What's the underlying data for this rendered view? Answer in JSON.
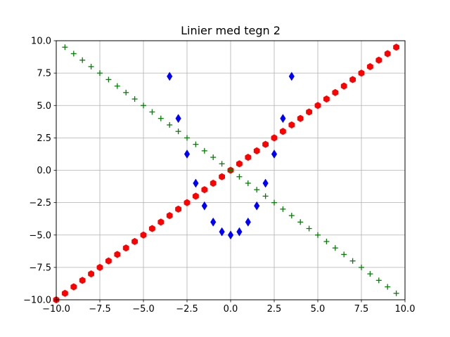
{
  "chart_data": {
    "type": "scatter",
    "title": "Linier med tegn 2",
    "xlabel": "",
    "ylabel": "",
    "xlim": [
      -10,
      10
    ],
    "ylim": [
      -10,
      10
    ],
    "grid": true,
    "x_ticks": [
      -10,
      -7.5,
      -5,
      -2.5,
      0,
      2.5,
      5,
      7.5,
      10
    ],
    "y_ticks": [
      -10,
      -7.5,
      -5,
      -2.5,
      0,
      2.5,
      5,
      7.5,
      10
    ],
    "x_tick_labels": [
      "−10.0",
      "−7.5",
      "−5.0",
      "−2.5",
      "0.0",
      "2.5",
      "5.0",
      "7.5",
      "10.0"
    ],
    "y_tick_labels": [
      "−10.0",
      "−7.5",
      "−5.0",
      "−2.5",
      "0.0",
      "2.5",
      "5.0",
      "7.5",
      "10.0"
    ],
    "series": [
      {
        "marker": "hexagon",
        "color": "#ff0000",
        "x": [
          -10,
          -9.5,
          -9,
          -8.5,
          -8,
          -7.5,
          -7,
          -6.5,
          -6,
          -5.5,
          -5,
          -4.5,
          -4,
          -3.5,
          -3,
          -2.5,
          -2,
          -1.5,
          -1,
          -0.5,
          0,
          0.5,
          1,
          1.5,
          2,
          2.5,
          3,
          3.5,
          4,
          4.5,
          5,
          5.5,
          6,
          6.5,
          7,
          7.5,
          8,
          8.5,
          9,
          9.5
        ],
        "y": [
          -10,
          -9.5,
          -9,
          -8.5,
          -8,
          -7.5,
          -7,
          -6.5,
          -6,
          -5.5,
          -5,
          -4.5,
          -4,
          -3.5,
          -3,
          -2.5,
          -2,
          -1.5,
          -1,
          -0.5,
          0,
          0.5,
          1,
          1.5,
          2,
          2.5,
          3,
          3.5,
          4,
          4.5,
          5,
          5.5,
          6,
          6.5,
          7,
          7.5,
          8,
          8.5,
          9,
          9.5
        ]
      },
      {
        "marker": "plus",
        "color": "#008000",
        "x": [
          -9.5,
          -9,
          -8.5,
          -8,
          -7.5,
          -7,
          -6.5,
          -6,
          -5.5,
          -5,
          -4.5,
          -4,
          -3.5,
          -3,
          -2.5,
          -2,
          -1.5,
          -1,
          -0.5,
          0,
          0.5,
          1,
          1.5,
          2,
          2.5,
          3,
          3.5,
          4,
          4.5,
          5,
          5.5,
          6,
          6.5,
          7,
          7.5,
          8,
          8.5,
          9,
          9.5
        ],
        "y": [
          9.5,
          9,
          8.5,
          8,
          7.5,
          7,
          6.5,
          6,
          5.5,
          5,
          4.5,
          4,
          3.5,
          3,
          2.5,
          2,
          1.5,
          1,
          0.5,
          0,
          -0.5,
          -1,
          -1.5,
          -2,
          -2.5,
          -3,
          -3.5,
          -4,
          -4.5,
          -5,
          -5.5,
          -6,
          -6.5,
          -7,
          -7.5,
          -8,
          -8.5,
          -9,
          -9.5
        ]
      },
      {
        "marker": "thin_diamond",
        "color": "#0000ff",
        "x": [
          -3.5,
          -3,
          -2.5,
          -2,
          -1.5,
          -1,
          -0.5,
          0,
          0.5,
          1,
          1.5,
          2,
          2.5,
          3,
          3.5
        ],
        "y": [
          7.25,
          4,
          1.25,
          -1,
          -2.75,
          -4,
          -4.75,
          -5,
          -4.75,
          -4,
          -2.75,
          -1,
          1.25,
          4,
          7.25
        ]
      }
    ]
  }
}
